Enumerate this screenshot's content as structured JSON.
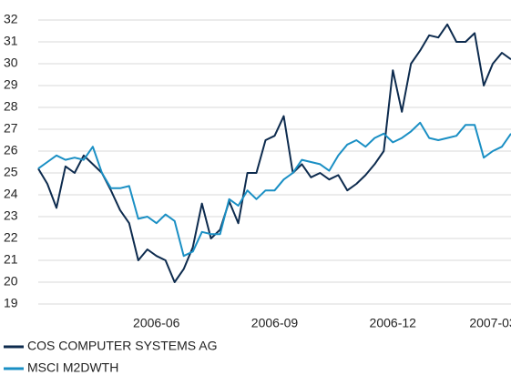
{
  "chart_data": {
    "type": "line",
    "categories": [
      null,
      null,
      null,
      null,
      null,
      null,
      null,
      null,
      null,
      null,
      null,
      null,
      null,
      "2006-06",
      null,
      null,
      null,
      null,
      null,
      null,
      null,
      null,
      null,
      null,
      null,
      null,
      "2006-09",
      null,
      null,
      null,
      null,
      null,
      null,
      null,
      null,
      null,
      null,
      null,
      null,
      "2006-12",
      null,
      null,
      null,
      null,
      null,
      null,
      null,
      null,
      null,
      null,
      "2007-03",
      null,
      null
    ],
    "series": [
      {
        "name": "COS COMPUTER SYSTEMS AG",
        "color": "#0d2b4e",
        "values": [
          25.2,
          24.5,
          23.4,
          25.3,
          25.0,
          25.8,
          25.4,
          25.0,
          24.2,
          23.3,
          22.7,
          21.0,
          21.5,
          21.2,
          21.0,
          20.0,
          20.6,
          21.6,
          23.6,
          22.0,
          22.4,
          23.7,
          22.7,
          25.0,
          25.0,
          26.5,
          26.7,
          27.6,
          25.0,
          25.4,
          24.8,
          25.0,
          24.7,
          24.9,
          24.2,
          24.5,
          24.9,
          25.4,
          26.0,
          29.7,
          27.8,
          30.0,
          30.6,
          31.3,
          31.2,
          31.8,
          31.0,
          31.0,
          31.4,
          29.0,
          30.0,
          30.5,
          30.2
        ]
      },
      {
        "name": "MSCI M2DWTH",
        "color": "#1a8fc4",
        "values": [
          25.2,
          25.5,
          25.8,
          25.6,
          25.7,
          25.6,
          26.2,
          25.0,
          24.3,
          24.3,
          24.4,
          22.9,
          23.0,
          22.7,
          23.1,
          22.8,
          21.2,
          21.4,
          22.3,
          22.2,
          22.2,
          23.8,
          23.5,
          24.2,
          23.8,
          24.2,
          24.2,
          24.7,
          25.0,
          25.6,
          25.5,
          25.4,
          25.1,
          25.8,
          26.3,
          26.5,
          26.2,
          26.6,
          26.8,
          26.4,
          26.6,
          26.9,
          27.3,
          26.6,
          26.5,
          26.6,
          26.7,
          27.2,
          27.2,
          25.7,
          26.0,
          26.2,
          26.8
        ]
      }
    ],
    "ylim": [
      19,
      32
    ],
    "yticks": [
      19,
      20,
      21,
      22,
      23,
      24,
      25,
      26,
      27,
      28,
      29,
      30,
      31,
      32
    ],
    "grid": true
  }
}
